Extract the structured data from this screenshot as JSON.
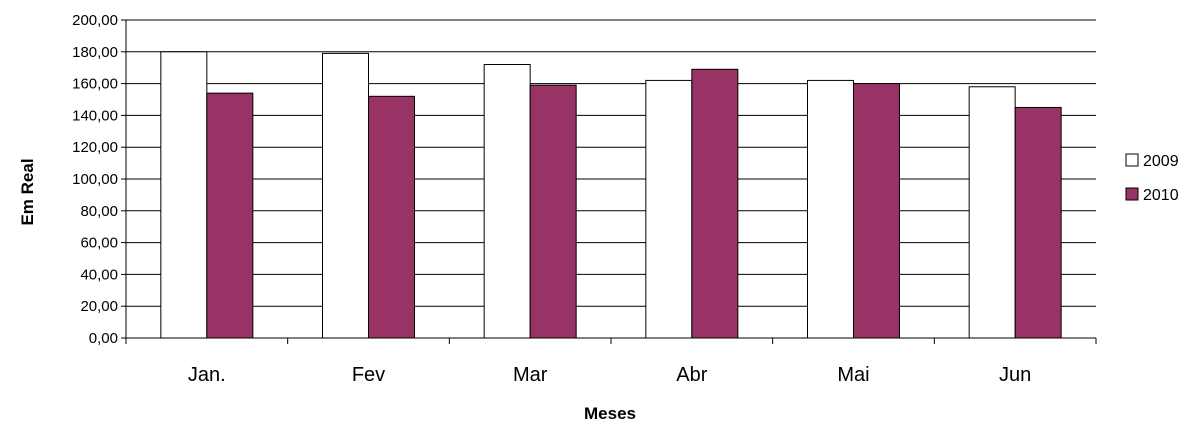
{
  "chart_data": {
    "type": "bar",
    "title": "",
    "xlabel": "Meses",
    "ylabel": "Em Real",
    "categories": [
      "Jan.",
      "Fev",
      "Mar",
      "Abr",
      "Mai",
      "Jun"
    ],
    "series": [
      {
        "name": "2009",
        "color": "#ffffff",
        "values": [
          180,
          179,
          172,
          162,
          162,
          158
        ]
      },
      {
        "name": "2010",
        "color": "#993366",
        "values": [
          154,
          152,
          159,
          169,
          160,
          145
        ]
      }
    ],
    "ylim": [
      0,
      200
    ],
    "yticks": [
      "0,00",
      "20,00",
      "40,00",
      "60,00",
      "80,00",
      "100,00",
      "120,00",
      "140,00",
      "160,00",
      "180,00",
      "200,00"
    ],
    "grid": true,
    "legend_position": "right"
  }
}
